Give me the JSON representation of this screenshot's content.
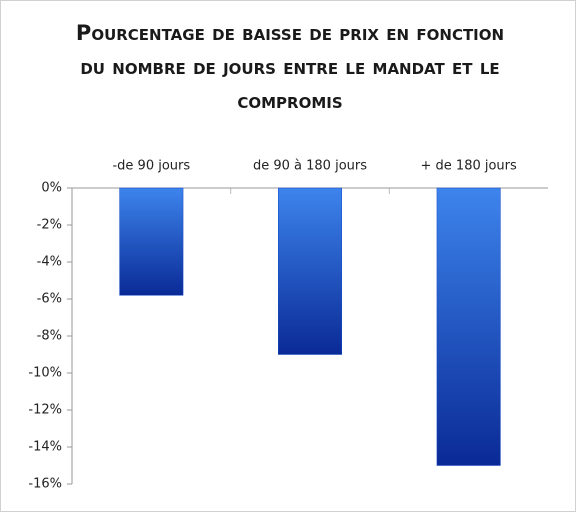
{
  "chart_data": {
    "type": "bar",
    "title": "Pourcentage de baisse de prix en fonction du nombre de jours entre le mandat et le compromis",
    "categories": [
      "-de 90 jours",
      "de 90 à 180 jours",
      "+ de 180 jours"
    ],
    "values": [
      -5.8,
      -9,
      -15
    ],
    "color": "#1548c8",
    "ylim": [
      -16,
      0
    ],
    "yticks": [
      {
        "value": 0,
        "label": "0%"
      },
      {
        "value": -2,
        "label": "-2%"
      },
      {
        "value": -4,
        "label": "-4%"
      },
      {
        "value": -6,
        "label": "-6%"
      },
      {
        "value": -8,
        "label": "-8%"
      },
      {
        "value": -10,
        "label": "-10%"
      },
      {
        "value": -12,
        "label": "-12%"
      },
      {
        "value": -14,
        "label": "-14%"
      },
      {
        "value": -16,
        "label": "-16%"
      }
    ]
  }
}
